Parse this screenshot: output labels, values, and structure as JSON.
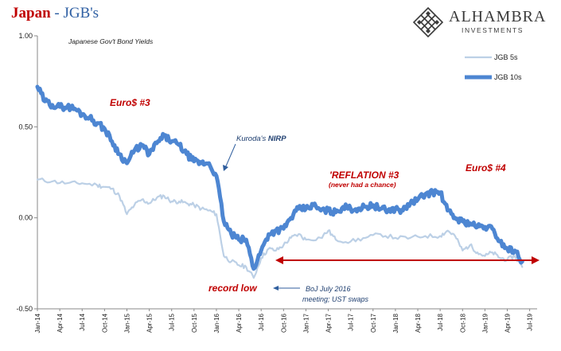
{
  "header": {
    "title_country": "Japan",
    "title_sep": " - ",
    "title_rest": "JGB's",
    "logo_name": "ALHAMBRA",
    "logo_sub": "INVESTMENTS"
  },
  "colors": {
    "jgb5": "#bcd0e6",
    "jgb10": "#4d86d2",
    "annotation_red": "#c00000",
    "arrow_red": "#c00000",
    "note_blue": "#2f5e9e"
  },
  "chart_data": {
    "type": "line",
    "subtitle": "Japanese Gov't Bond Yields",
    "ylim": [
      -0.5,
      1.0
    ],
    "y_ticks": [
      {
        "value": 1.0,
        "label": "1.00"
      },
      {
        "value": 0.5,
        "label": "0.50"
      },
      {
        "value": 0.0,
        "label": "0.00"
      },
      {
        "value": -0.5,
        "label": "-0.50"
      }
    ],
    "x_ticks": [
      "Jan-14",
      "Apr-14",
      "Jul-14",
      "Oct-14",
      "Jan-15",
      "Apr-15",
      "Jul-15",
      "Oct-15",
      "Jan-16",
      "Apr-16",
      "Jul-16",
      "Oct-16",
      "Jan-17",
      "Apr-17",
      "Jul-17",
      "Oct-17",
      "Jan-18",
      "Apr-18",
      "Jul-18",
      "Oct-18",
      "Jan-19",
      "Apr-19",
      "Jul-19"
    ],
    "legend": [
      "JGB 5s",
      "JGB 10s"
    ],
    "legend_position": "top-right",
    "series": [
      {
        "name": "JGB 5s",
        "points": [
          [
            0,
            0.21
          ],
          [
            2,
            0.2
          ],
          [
            4,
            0.19
          ],
          [
            6,
            0.19
          ],
          [
            8,
            0.18
          ],
          [
            9,
            0.17
          ],
          [
            10,
            0.16
          ],
          [
            11,
            0.12
          ],
          [
            12,
            0.02
          ],
          [
            13,
            0.07
          ],
          [
            14,
            0.1
          ],
          [
            15,
            0.08
          ],
          [
            16,
            0.11
          ],
          [
            17,
            0.12
          ],
          [
            18,
            0.09
          ],
          [
            19,
            0.09
          ],
          [
            20,
            0.08
          ],
          [
            21,
            0.07
          ],
          [
            22,
            0.05
          ],
          [
            23,
            0.04
          ],
          [
            24,
            0.02
          ],
          [
            25,
            -0.21
          ],
          [
            26,
            -0.24
          ],
          [
            27,
            -0.26
          ],
          [
            28,
            -0.27
          ],
          [
            29,
            -0.33
          ],
          [
            30,
            -0.22
          ],
          [
            31,
            -0.17
          ],
          [
            32,
            -0.18
          ],
          [
            33,
            -0.15
          ],
          [
            34,
            -0.11
          ],
          [
            35,
            -0.09
          ],
          [
            36,
            -0.12
          ],
          [
            38,
            -0.11
          ],
          [
            39,
            -0.07
          ],
          [
            40,
            -0.12
          ],
          [
            42,
            -0.13
          ],
          [
            44,
            -0.11
          ],
          [
            46,
            -0.09
          ],
          [
            48,
            -0.11
          ],
          [
            50,
            -0.11
          ],
          [
            52,
            -0.1
          ],
          [
            54,
            -0.1
          ],
          [
            55,
            -0.07
          ],
          [
            56,
            -0.1
          ],
          [
            57,
            -0.18
          ],
          [
            58,
            -0.15
          ],
          [
            59,
            -0.19
          ],
          [
            60,
            -0.21
          ],
          [
            61,
            -0.19
          ],
          [
            62,
            -0.22
          ],
          [
            63,
            -0.23
          ],
          [
            64,
            -0.21
          ],
          [
            65,
            -0.27
          ]
        ]
      },
      {
        "name": "JGB 10s",
        "points": [
          [
            0,
            0.72
          ],
          [
            1,
            0.64
          ],
          [
            2,
            0.62
          ],
          [
            3,
            0.61
          ],
          [
            4,
            0.61
          ],
          [
            5,
            0.6
          ],
          [
            6,
            0.57
          ],
          [
            7,
            0.55
          ],
          [
            8,
            0.52
          ],
          [
            9,
            0.49
          ],
          [
            10,
            0.42
          ],
          [
            11,
            0.35
          ],
          [
            12,
            0.3
          ],
          [
            13,
            0.37
          ],
          [
            14,
            0.4
          ],
          [
            15,
            0.35
          ],
          [
            16,
            0.41
          ],
          [
            17,
            0.45
          ],
          [
            18,
            0.42
          ],
          [
            19,
            0.4
          ],
          [
            20,
            0.35
          ],
          [
            21,
            0.31
          ],
          [
            22,
            0.3
          ],
          [
            23,
            0.3
          ],
          [
            24,
            0.23
          ],
          [
            25,
            -0.02
          ],
          [
            26,
            -0.09
          ],
          [
            27,
            -0.12
          ],
          [
            28,
            -0.12
          ],
          [
            29,
            -0.28
          ],
          [
            30,
            -0.18
          ],
          [
            31,
            -0.09
          ],
          [
            32,
            -0.07
          ],
          [
            33,
            -0.06
          ],
          [
            34,
            0.0
          ],
          [
            35,
            0.05
          ],
          [
            36,
            0.05
          ],
          [
            37,
            0.07
          ],
          [
            38,
            0.04
          ],
          [
            39,
            0.04
          ],
          [
            40,
            0.03
          ],
          [
            41,
            0.06
          ],
          [
            42,
            0.05
          ],
          [
            43,
            0.05
          ],
          [
            44,
            0.06
          ],
          [
            45,
            0.07
          ],
          [
            46,
            0.05
          ],
          [
            47,
            0.04
          ],
          [
            48,
            0.05
          ],
          [
            49,
            0.04
          ],
          [
            50,
            0.08
          ],
          [
            51,
            0.1
          ],
          [
            52,
            0.13
          ],
          [
            53,
            0.14
          ],
          [
            54,
            0.14
          ],
          [
            55,
            0.04
          ],
          [
            56,
            0.0
          ],
          [
            57,
            -0.02
          ],
          [
            58,
            -0.03
          ],
          [
            59,
            -0.05
          ],
          [
            60,
            -0.05
          ],
          [
            61,
            -0.06
          ],
          [
            62,
            -0.13
          ],
          [
            63,
            -0.17
          ],
          [
            64,
            -0.18
          ],
          [
            65,
            -0.24
          ]
        ]
      }
    ],
    "annotations": [
      {
        "text": "Euro$ #3",
        "color": "red"
      },
      {
        "text": "Kuroda's ",
        "bold_part": "NIRP",
        "color": "blue"
      },
      {
        "text": "'REFLATION #3",
        "color": "red"
      },
      {
        "text": "(never had a chance)",
        "color": "red"
      },
      {
        "text": "Euro$ #4",
        "color": "red"
      },
      {
        "text": "record low",
        "color": "red"
      },
      {
        "text": "BoJ July 2016",
        "color": "blue"
      },
      {
        "text": "meeting; UST swaps",
        "color": "blue"
      }
    ]
  }
}
